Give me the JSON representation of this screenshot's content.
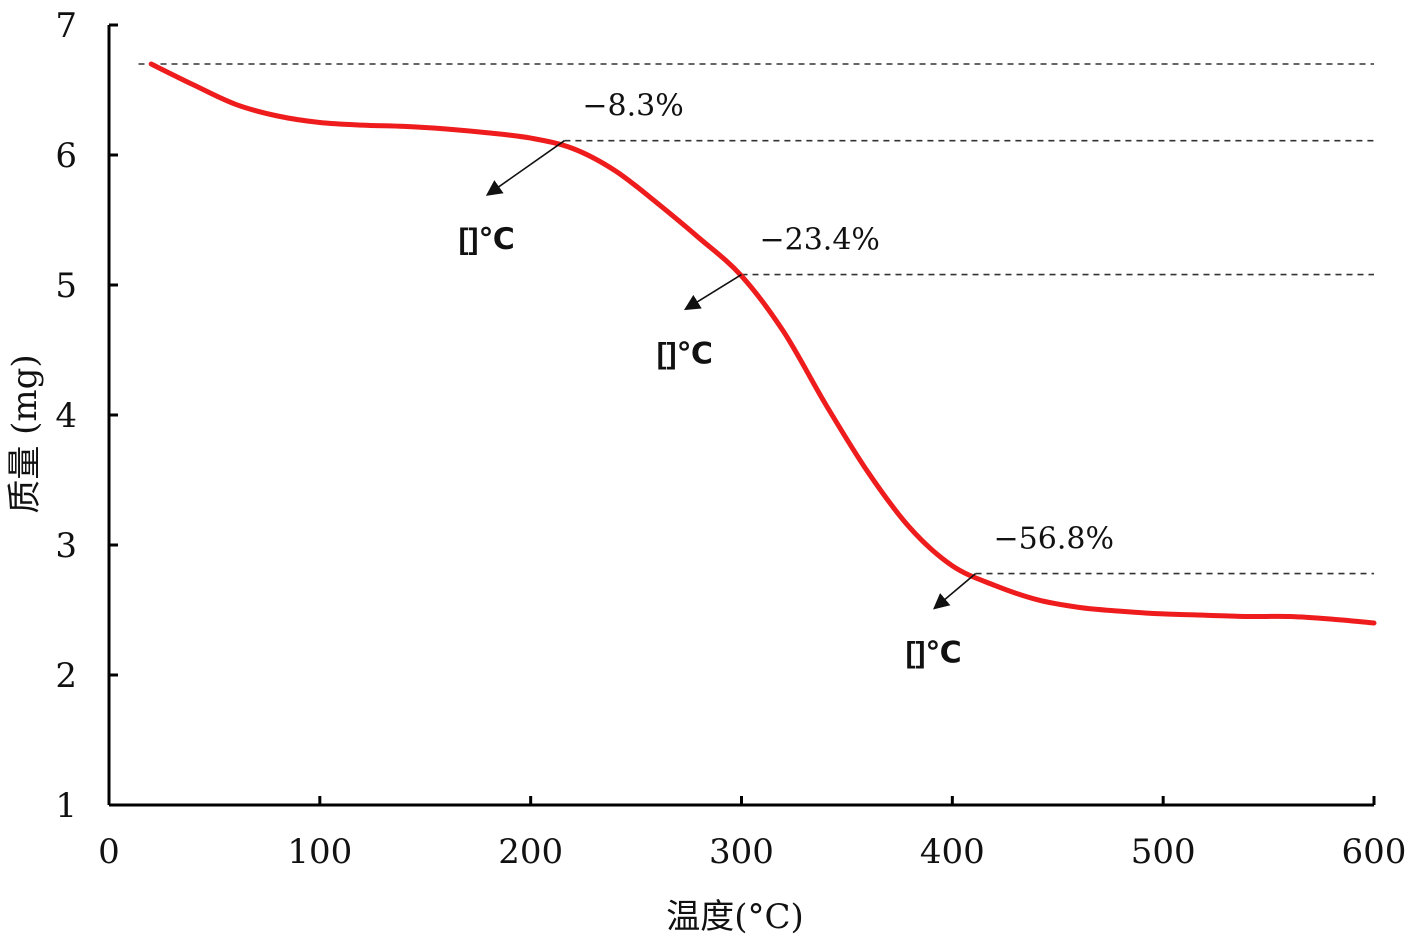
{
  "chart_data": {
    "type": "line",
    "title": "",
    "xlabel": "温度(°C)",
    "ylabel": "质量 (mg)",
    "xlim": [
      0,
      600
    ],
    "ylim": [
      1,
      7
    ],
    "xticks": [
      0,
      100,
      200,
      300,
      400,
      500,
      600
    ],
    "yticks": [
      1,
      2,
      3,
      4,
      5,
      6,
      7
    ],
    "grid": false,
    "colors": {
      "curve": "#ee1c1c",
      "axis": "#000000",
      "reference": "#333333"
    },
    "series": [
      {
        "name": "mass",
        "x": [
          20,
          40,
          60,
          80,
          100,
          120,
          140,
          160,
          180,
          200,
          220,
          240,
          260,
          280,
          300,
          320,
          340,
          360,
          380,
          400,
          420,
          440,
          460,
          480,
          500,
          520,
          540,
          560,
          580,
          600
        ],
        "y": [
          6.7,
          6.54,
          6.39,
          6.3,
          6.25,
          6.23,
          6.22,
          6.2,
          6.17,
          6.13,
          6.05,
          5.88,
          5.63,
          5.36,
          5.07,
          4.64,
          4.08,
          3.56,
          3.13,
          2.84,
          2.69,
          2.58,
          2.52,
          2.49,
          2.47,
          2.46,
          2.45,
          2.45,
          2.43,
          2.4
        ]
      }
    ],
    "reference_lines": [
      {
        "y": 6.7,
        "x_start": 14,
        "x_end": 600
      },
      {
        "y": 6.11,
        "x_start": 216,
        "x_end": 600
      },
      {
        "y": 5.08,
        "x_start": 300,
        "x_end": 600
      },
      {
        "y": 2.78,
        "x_start": 411,
        "x_end": 600
      }
    ],
    "annotations": [
      {
        "percent": "−8.3%",
        "temp_label": "[]℃",
        "point": [
          216,
          6.11
        ],
        "arrow_tip": [
          180,
          5.7
        ]
      },
      {
        "percent": "−23.4%",
        "temp_label": "[]℃",
        "point": [
          300,
          5.08
        ],
        "arrow_tip": [
          274,
          4.82
        ]
      },
      {
        "percent": "−56.8%",
        "temp_label": "[]℃",
        "point": [
          411,
          2.78
        ],
        "arrow_tip": [
          392,
          2.52
        ]
      }
    ]
  }
}
